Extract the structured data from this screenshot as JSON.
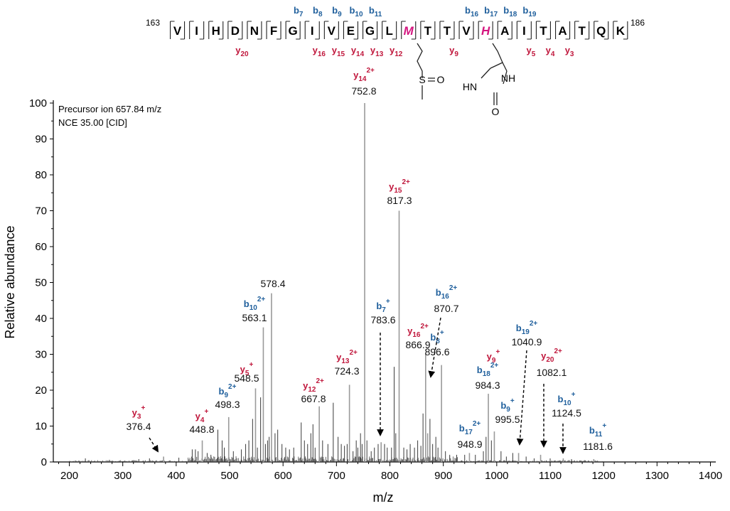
{
  "chart_data": {
    "type": "bar",
    "xlabel": "m/z",
    "ylabel": "Relative abundance",
    "xlim": [
      170,
      1410
    ],
    "ylim": [
      0,
      100
    ],
    "x_ticks": [
      200,
      300,
      400,
      500,
      600,
      700,
      800,
      900,
      1000,
      1100,
      1200,
      1300,
      1400
    ],
    "y_ticks": [
      0,
      10,
      20,
      30,
      40,
      50,
      60,
      70,
      80,
      90,
      100
    ],
    "annotation_lines": [
      "Precursor ion 657.84 m/z",
      "NCE 35.00 [CID]"
    ],
    "peptide": {
      "start": "163",
      "end": "186",
      "residues": [
        "V",
        "I",
        "H",
        "D",
        "N",
        "F",
        "G",
        "I",
        "V",
        "E",
        "G",
        "L",
        "M",
        "T",
        "T",
        "V",
        "H",
        "A",
        "I",
        "T",
        "A",
        "T",
        "Q",
        "K"
      ],
      "modified_indices": [
        12,
        16
      ],
      "b_ions": [
        "b7",
        "b8",
        "b9",
        "b10",
        "b11",
        "b16",
        "b17",
        "b18",
        "b19"
      ],
      "y_ions": [
        "y20",
        "y16",
        "y15",
        "y14",
        "y13",
        "y12",
        "y9",
        "y5",
        "y4",
        "y3"
      ],
      "modification_atoms": [
        "S",
        "O",
        "HN",
        "NH",
        "O"
      ]
    },
    "labeled_peaks": [
      {
        "mz": 376.4,
        "y": 1.5,
        "ion": "y3",
        "charge": "+",
        "type": "y",
        "label": "376.4"
      },
      {
        "mz": 448.8,
        "y": 6,
        "ion": "y4",
        "charge": "+",
        "type": "y",
        "label": "448.8"
      },
      {
        "mz": 498.3,
        "y": 12.5,
        "ion": "b9",
        "charge": "2+",
        "type": "b",
        "label": "498.3"
      },
      {
        "mz": 548.5,
        "y": 20.5,
        "ion": "y5",
        "charge": "+",
        "type": "y",
        "label": "548.5"
      },
      {
        "mz": 563.1,
        "y": 37.5,
        "ion": "b10",
        "charge": "2+",
        "type": "b",
        "label": "563.1"
      },
      {
        "mz": 578.4,
        "y": 47,
        "ion": "",
        "charge": "",
        "type": "n",
        "label": "578.4"
      },
      {
        "mz": 667.8,
        "y": 15.5,
        "ion": "y12",
        "charge": "2+",
        "type": "y",
        "label": "667.8"
      },
      {
        "mz": 724.3,
        "y": 21.5,
        "ion": "y13",
        "charge": "2+",
        "type": "y",
        "label": "724.3"
      },
      {
        "mz": 752.8,
        "y": 100,
        "ion": "y14",
        "charge": "2+",
        "type": "y",
        "label": "752.8"
      },
      {
        "mz": 783.6,
        "y": 5.5,
        "ion": "b7",
        "charge": "+",
        "type": "b",
        "label": "783.6"
      },
      {
        "mz": 817.3,
        "y": 70,
        "ion": "y15",
        "charge": "2+",
        "type": "y",
        "label": "817.3"
      },
      {
        "mz": 866.9,
        "y": 30,
        "ion": "y16",
        "charge": "2+",
        "type": "y",
        "label": "866.9"
      },
      {
        "mz": 870.7,
        "y": 8,
        "ion": "b16",
        "charge": "2+",
        "type": "b",
        "label": "870.7"
      },
      {
        "mz": 896.6,
        "y": 27,
        "ion": "b8",
        "charge": "+",
        "type": "b",
        "label": "896.6"
      },
      {
        "mz": 948.9,
        "y": 2.5,
        "ion": "b17",
        "charge": "2+",
        "type": "b",
        "label": "948.9"
      },
      {
        "mz": 984.3,
        "y": 19,
        "ion": "b18",
        "charge": "2+",
        "type": "b",
        "label": "984.3"
      },
      {
        "mz": 984.3,
        "y": 19,
        "ion": "y9",
        "charge": "+",
        "type": "y",
        "label": ""
      },
      {
        "mz": 995.5,
        "y": 8.5,
        "ion": "b9",
        "charge": "+",
        "type": "b",
        "label": "995.5"
      },
      {
        "mz": 1040.9,
        "y": 2.5,
        "ion": "b19",
        "charge": "2+",
        "type": "b",
        "label": "1040.9"
      },
      {
        "mz": 1082.1,
        "y": 2,
        "ion": "y20",
        "charge": "2+",
        "type": "y",
        "label": "1082.1"
      },
      {
        "mz": 1124.5,
        "y": 1,
        "ion": "b10",
        "charge": "+",
        "type": "b",
        "label": "1124.5"
      },
      {
        "mz": 1181.6,
        "y": 0.8,
        "ion": "b11",
        "charge": "+",
        "type": "b",
        "label": "1181.6"
      }
    ],
    "minor_peaks": [
      [
        230,
        1
      ],
      [
        275,
        0.6
      ],
      [
        330,
        0.8
      ],
      [
        350,
        1
      ],
      [
        405,
        1.2
      ],
      [
        430,
        3.5
      ],
      [
        436,
        3.5
      ],
      [
        441,
        3
      ],
      [
        458,
        2.5
      ],
      [
        465,
        2
      ],
      [
        478,
        9
      ],
      [
        486,
        6
      ],
      [
        490,
        4
      ],
      [
        507,
        3
      ],
      [
        522,
        3.5
      ],
      [
        530,
        5
      ],
      [
        536,
        6
      ],
      [
        543,
        12
      ],
      [
        552,
        4
      ],
      [
        558,
        18
      ],
      [
        567,
        5
      ],
      [
        571,
        6
      ],
      [
        574,
        7
      ],
      [
        585,
        8
      ],
      [
        590,
        9
      ],
      [
        598,
        5
      ],
      [
        605,
        4
      ],
      [
        612,
        3.5
      ],
      [
        620,
        4
      ],
      [
        634,
        11
      ],
      [
        640,
        6
      ],
      [
        646,
        5
      ],
      [
        652,
        8
      ],
      [
        656,
        10.5
      ],
      [
        660,
        4
      ],
      [
        674,
        6
      ],
      [
        684,
        5
      ],
      [
        694,
        16.5
      ],
      [
        703,
        7
      ],
      [
        709,
        5
      ],
      [
        715,
        4.5
      ],
      [
        720,
        5
      ],
      [
        731,
        3
      ],
      [
        737,
        6
      ],
      [
        740,
        4
      ],
      [
        745,
        8
      ],
      [
        748,
        5
      ],
      [
        757,
        6
      ],
      [
        765,
        3
      ],
      [
        771,
        4
      ],
      [
        778,
        5
      ],
      [
        790,
        5
      ],
      [
        795,
        4
      ],
      [
        803,
        4
      ],
      [
        808,
        26.5
      ],
      [
        811,
        8
      ],
      [
        826,
        4
      ],
      [
        832,
        3.5
      ],
      [
        838,
        5
      ],
      [
        846,
        4
      ],
      [
        852,
        6
      ],
      [
        858,
        4.5
      ],
      [
        862,
        13.5
      ],
      [
        875,
        12
      ],
      [
        880,
        5
      ],
      [
        886,
        7
      ],
      [
        890,
        4
      ],
      [
        904,
        3
      ],
      [
        912,
        2
      ],
      [
        925,
        2
      ],
      [
        940,
        2
      ],
      [
        960,
        2
      ],
      [
        975,
        3
      ],
      [
        980,
        7
      ],
      [
        990,
        6
      ],
      [
        1008,
        3
      ],
      [
        1018,
        1.5
      ],
      [
        1030,
        2.5
      ],
      [
        1055,
        1.5
      ],
      [
        1070,
        1
      ],
      [
        1100,
        1
      ],
      [
        1140,
        0.8
      ],
      [
        1165,
        0.5
      ]
    ]
  }
}
